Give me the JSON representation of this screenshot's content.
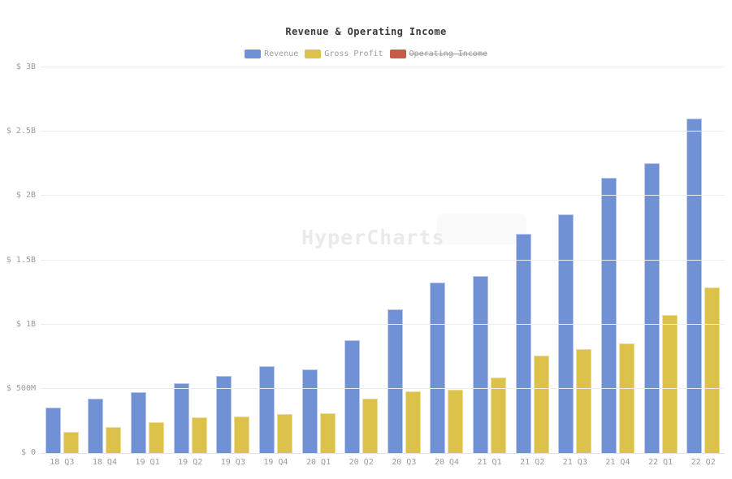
{
  "chart_data": {
    "type": "bar",
    "title": "Revenue & Operating Income",
    "watermark": "HyperCharts",
    "unit": "millions USD",
    "categories": [
      "18 Q3",
      "18 Q4",
      "19 Q1",
      "19 Q2",
      "19 Q3",
      "19 Q4",
      "20 Q1",
      "20 Q2",
      "20 Q3",
      "20 Q4",
      "21 Q1",
      "21 Q2",
      "21 Q3",
      "21 Q4",
      "22 Q1",
      "22 Q2"
    ],
    "series": [
      {
        "name": "Revenue",
        "color": "#7191d5",
        "border_color": "#bcc9ec",
        "hidden": false,
        "values_musd": [
          355,
          425,
          475,
          545,
          600,
          675,
          650,
          880,
          1115,
          1325,
          1380,
          1705,
          1860,
          2140,
          2255,
          2605
        ]
      },
      {
        "name": "Gross Profit",
        "color": "#dcc24a",
        "border_color": "#ebdf9e",
        "hidden": false,
        "values_musd": [
          165,
          200,
          240,
          275,
          285,
          305,
          310,
          425,
          480,
          490,
          590,
          755,
          810,
          855,
          1075,
          1290
        ]
      },
      {
        "name": "Operating Income",
        "color": "#c65b4a",
        "border_color": "#d98d7f",
        "hidden": true,
        "values_musd": []
      }
    ],
    "y_ticks": [
      {
        "value_musd": 0,
        "label": "$ 0"
      },
      {
        "value_musd": 500,
        "label": "$ 500M"
      },
      {
        "value_musd": 1000,
        "label": "$ 1B"
      },
      {
        "value_musd": 1500,
        "label": "$ 1.5B"
      },
      {
        "value_musd": 2000,
        "label": "$ 2B"
      },
      {
        "value_musd": 2500,
        "label": "$ 2.5B"
      },
      {
        "value_musd": 3000,
        "label": "$ 3B"
      }
    ],
    "ylim_musd": [
      0,
      3000
    ],
    "grid": true,
    "legend_position": "top",
    "colors": {
      "title_text": "#3a3a3a",
      "axis_text": "#9b9b9b",
      "legend_text": "#9b9b9b",
      "grid_line": "#ededed",
      "axis_line": "#e2e2e2",
      "watermark": "#eaeaea",
      "background": "#ffffff"
    }
  }
}
